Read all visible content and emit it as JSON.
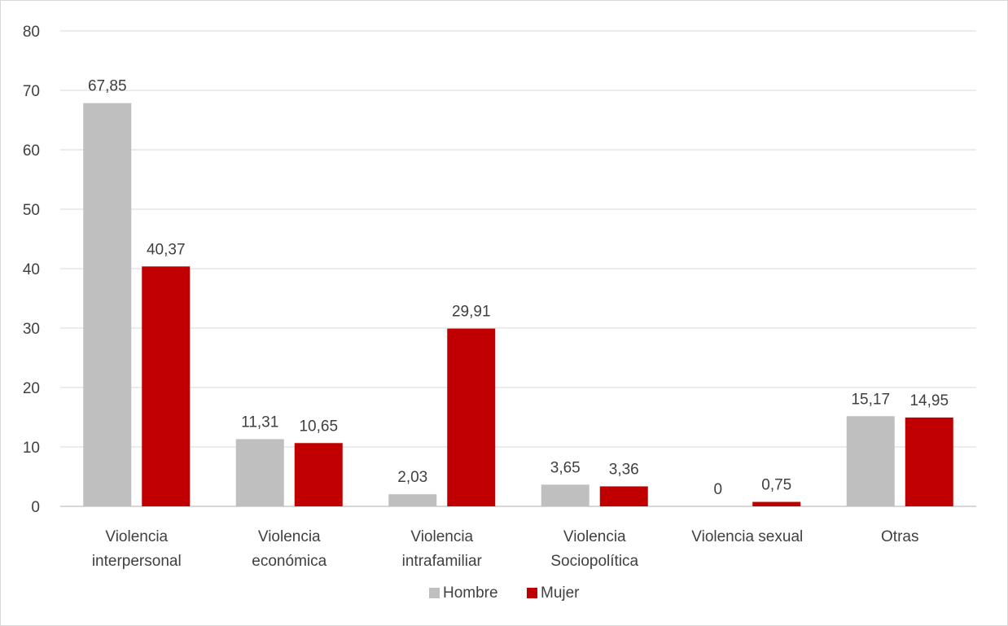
{
  "chart_data": {
    "type": "bar",
    "title": "",
    "xlabel": "",
    "ylabel": "",
    "ylim": [
      0,
      80
    ],
    "yticks": [
      0,
      10,
      20,
      30,
      40,
      50,
      60,
      70,
      80
    ],
    "grid": true,
    "legend_position": "bottom",
    "categories": [
      [
        "Violencia",
        "interpersonal"
      ],
      [
        "Violencia",
        "económica"
      ],
      [
        "Violencia",
        "intrafamiliar"
      ],
      [
        "Violencia",
        "Sociopolítica"
      ],
      [
        "Violencia sexual"
      ],
      [
        "Otras"
      ]
    ],
    "series": [
      {
        "name": "Hombre",
        "color": "#bfbfbf",
        "values": [
          67.85,
          11.31,
          2.03,
          3.65,
          0,
          15.17
        ],
        "labels": [
          "67,85",
          "11,31",
          "2,03",
          "3,65",
          "0",
          "15,17"
        ]
      },
      {
        "name": "Mujer",
        "color": "#c00000",
        "values": [
          40.37,
          10.65,
          29.91,
          3.36,
          0.75,
          14.95
        ],
        "labels": [
          "40,37",
          "10,65",
          "29,91",
          "3,36",
          "0,75",
          "14,95"
        ]
      }
    ]
  }
}
